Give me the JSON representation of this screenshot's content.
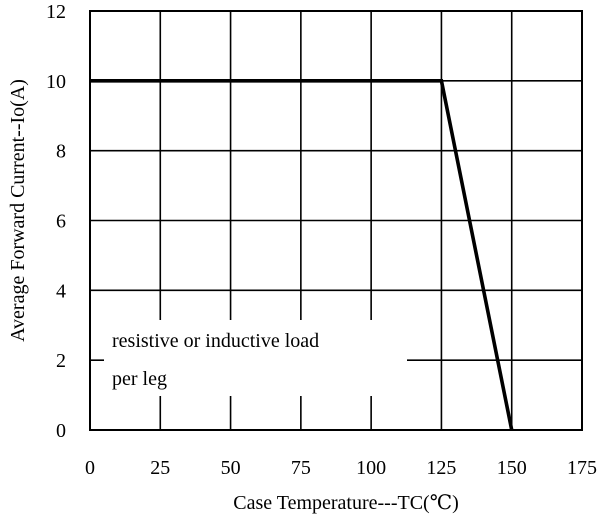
{
  "chart_data": {
    "type": "line",
    "xlabel": "Case Temperature---TC(℃)",
    "ylabel": "Average Forward Current--Io(A)",
    "xlim": [
      0,
      175
    ],
    "ylim": [
      0,
      12
    ],
    "xticks": [
      0,
      25,
      50,
      75,
      100,
      125,
      150,
      175
    ],
    "yticks": [
      0,
      2,
      4,
      6,
      8,
      10,
      12
    ],
    "grid": true,
    "series": [
      {
        "x": [
          0,
          125,
          150
        ],
        "y": [
          10,
          10,
          0
        ]
      }
    ],
    "annotation": {
      "lines": [
        "resistive or inductive load",
        "per leg"
      ]
    },
    "colors": {
      "line": "#000000",
      "grid": "#000000",
      "background": "#ffffff"
    }
  }
}
